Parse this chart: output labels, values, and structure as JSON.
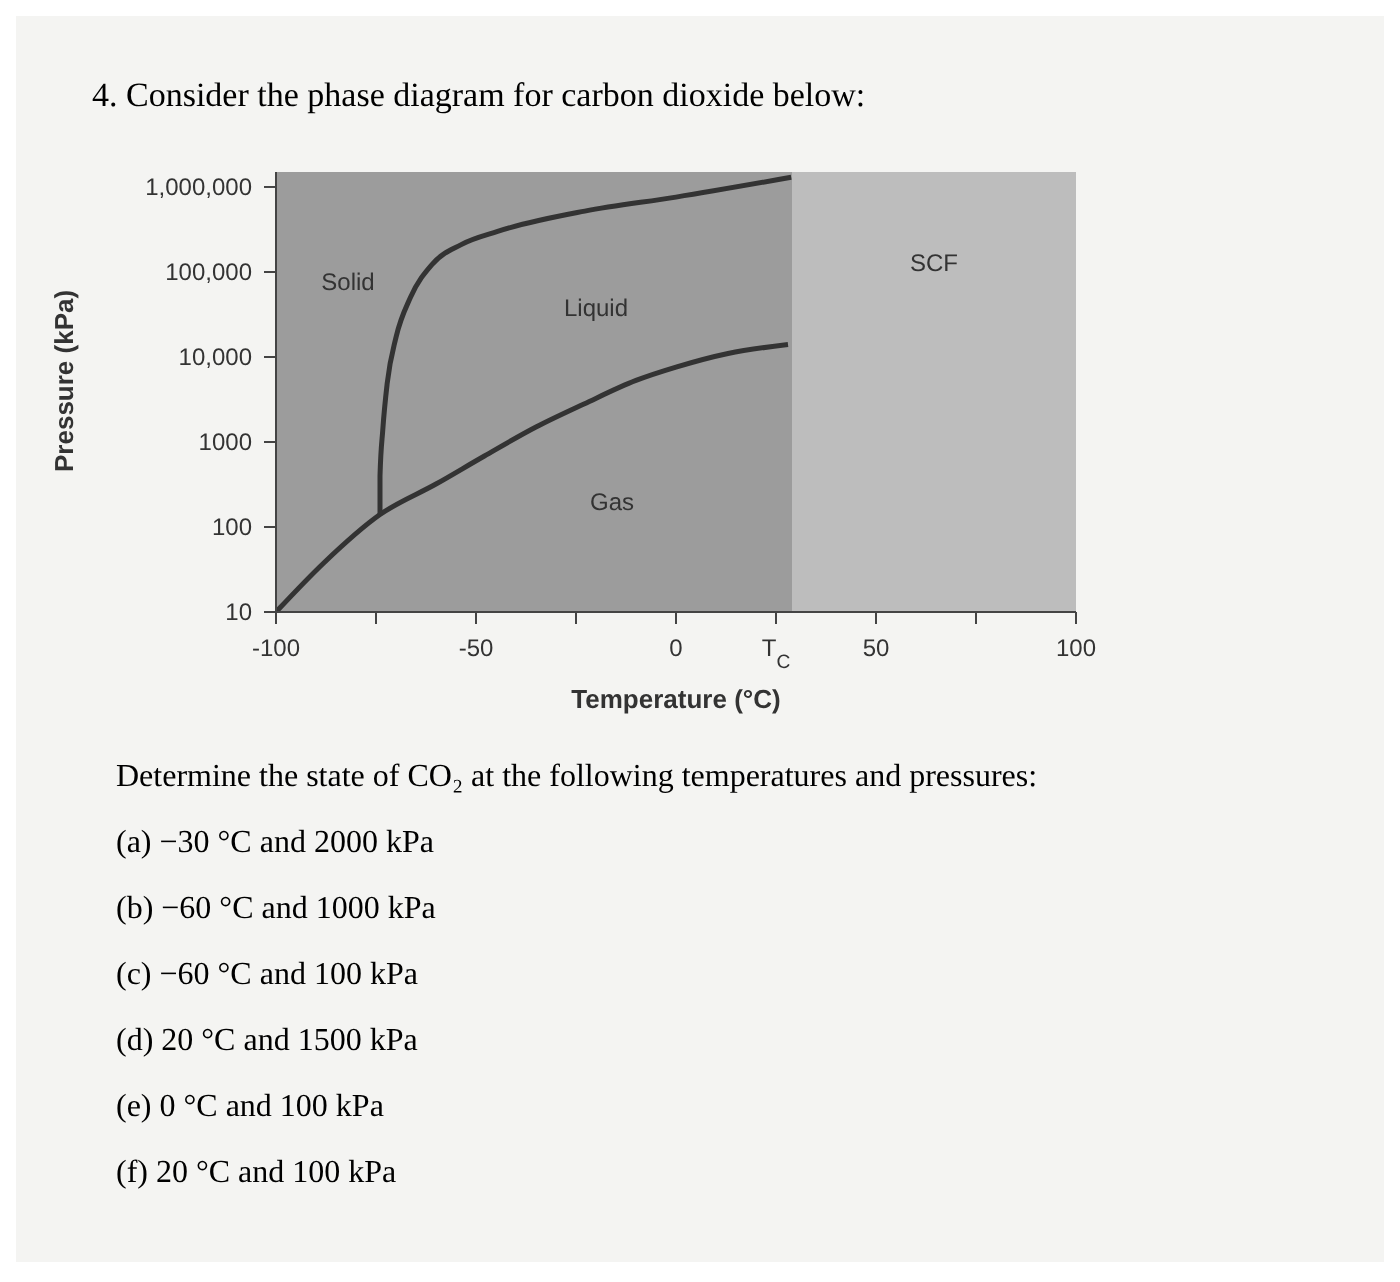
{
  "chart_data": {
    "type": "line",
    "title": "4. Consider the phase diagram for carbon dioxide below:",
    "xlabel": "Temperature (°C)",
    "ylabel": "Pressure (kPa)",
    "log": "y",
    "xlim": [
      -100,
      100
    ],
    "xticks": [
      -100,
      {
        "value": -75,
        "label": null
      },
      -50,
      {
        "value": -25,
        "label": null
      },
      0,
      {
        "value": 25,
        "label": "T$_{C}$"
      },
      50,
      {
        "value": 75,
        "label": null
      },
      100
    ],
    "ylim": [
      10,
      1500000
    ],
    "yticks": [
      10,
      100,
      1000,
      {
        "value": 10000,
        "label": "10,000"
      },
      {
        "value": 100000,
        "label": "100,000"
      },
      {
        "value": 1000000,
        "label": "1,000,000"
      }
    ],
    "bands": [
      {
        "axis": "x",
        "from": -100,
        "to": 29,
        "label": null,
        "color": "#9c9c9c"
      },
      {
        "axis": "x",
        "from": 29,
        "to": 100,
        "label": "SCF",
        "color": "#bdbdbd"
      }
    ],
    "series": [
      {
        "color": "#333333",
        "x": [
          -100,
          -88,
          -74,
          -60,
          -48,
          -35,
          -23,
          -10,
          0,
          13,
          28
        ],
        "values": [
          10,
          38,
          140,
          320,
          680,
          1500,
          2800,
          5300,
          7600,
          11000,
          14000
        ]
      },
      {
        "color": "#333333",
        "x": [
          -74,
          -74,
          -73.3,
          -72.2,
          -70,
          -66.4,
          -60.9,
          -53.7,
          -44.6,
          -22.8,
          0,
          28.8
        ],
        "values": [
          140,
          400,
          1400,
          4900,
          17000,
          50000,
          124000,
          210000,
          300000,
          520000,
          760000,
          1300000
        ]
      }
    ],
    "annotations": [
      "Solid",
      "Liquid",
      "Gas",
      "Determine the state of CO₂ at the following temperatures and pressures:",
      "(a) −30 °C and 2000 kPa",
      "(b) −60 °C and 1000 kPa",
      "(c) −60 °C and 100 kPa",
      "(d) 20 °C and 1500 kPa",
      "(e) 0 °C and 100 kPa",
      "(f) 20 °C and 100 kPa"
    ]
  }
}
